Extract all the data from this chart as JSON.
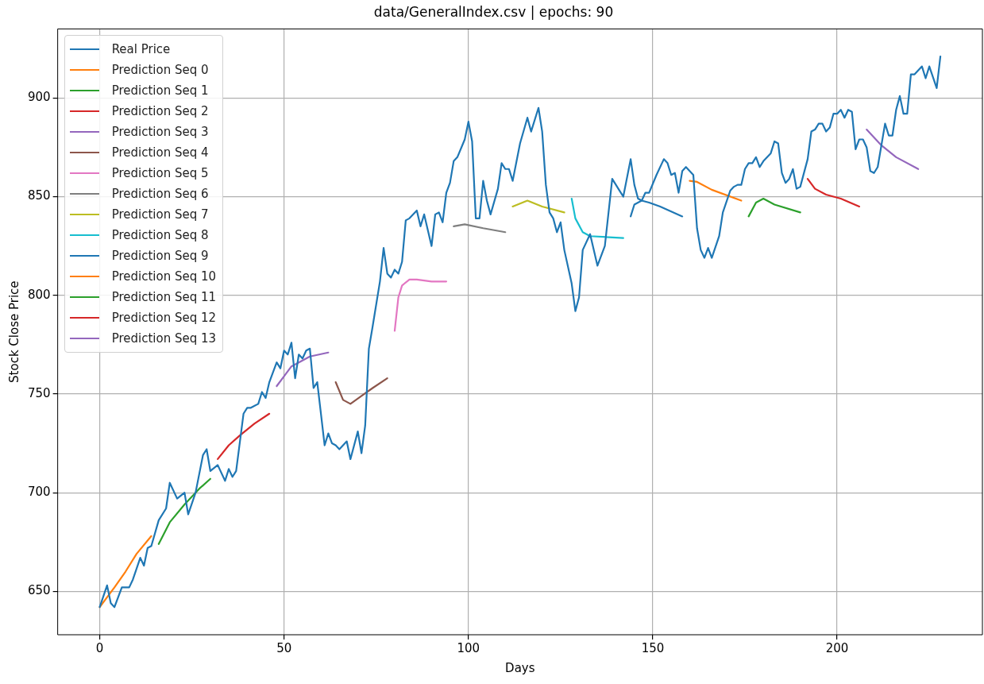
{
  "chart_data": {
    "type": "line",
    "title": "data/GeneralIndex.csv | epochs: 90",
    "xlabel": "Days",
    "ylabel": "Stock Close Price",
    "xlim": [
      -11.4,
      239.4
    ],
    "ylim": [
      628,
      935
    ],
    "xticks": [
      0,
      50,
      100,
      150,
      200
    ],
    "yticks": [
      650,
      700,
      750,
      800,
      850,
      900
    ],
    "grid": true,
    "legend": "top left",
    "marker": "none",
    "line_style": "solid",
    "series": [
      {
        "name": "Real Price",
        "color": "#1f77b4",
        "x": [
          0,
          2,
          3,
          4,
          6,
          8,
          9,
          11,
          12,
          13,
          14,
          16,
          18,
          19,
          21,
          23,
          24,
          26,
          28,
          29,
          30,
          32,
          34,
          35,
          36,
          37,
          39,
          40,
          41,
          43,
          44,
          45,
          46,
          48,
          49,
          50,
          51,
          52,
          53,
          54,
          55,
          56,
          57,
          58,
          59,
          61,
          62,
          63,
          64,
          65,
          67,
          68,
          70,
          71,
          72,
          73,
          74,
          76,
          77,
          78,
          79,
          80,
          81,
          82,
          83,
          84,
          86,
          87,
          88,
          90,
          91,
          92,
          93,
          94,
          95,
          96,
          97,
          99,
          100,
          101,
          102,
          103,
          104,
          105,
          106,
          108,
          109,
          110,
          111,
          112,
          114,
          116,
          117,
          119,
          120,
          121,
          122,
          123,
          124,
          125,
          126,
          128,
          129,
          130,
          131,
          133,
          135,
          137,
          139,
          141,
          142,
          144,
          145,
          146,
          147,
          148,
          149,
          151,
          153,
          154,
          155,
          156,
          157,
          158,
          159,
          161,
          162,
          163,
          164,
          165,
          166,
          168,
          169,
          171,
          172,
          173,
          174,
          175,
          176,
          177,
          178,
          179,
          180,
          182,
          183,
          184,
          185,
          186,
          187,
          188,
          189,
          190,
          192,
          193,
          194,
          195,
          196,
          197,
          198,
          199,
          200,
          201,
          202,
          203,
          204,
          205,
          206,
          207,
          208,
          209,
          210,
          211,
          212,
          213,
          214,
          215,
          216,
          217,
          218,
          219,
          220,
          221,
          222,
          223,
          224,
          225,
          227,
          228
        ],
        "values": [
          642,
          653,
          644,
          642,
          652,
          652,
          656,
          667,
          663,
          672,
          673,
          686,
          692,
          705,
          697,
          700,
          689,
          700,
          719,
          722,
          711,
          714,
          706,
          712,
          708,
          711,
          740,
          743,
          743,
          745,
          751,
          748,
          756,
          766,
          763,
          772,
          770,
          776,
          758,
          770,
          768,
          772,
          773,
          753,
          756,
          724,
          730,
          725,
          724,
          722,
          726,
          717,
          731,
          720,
          734,
          773,
          784,
          807,
          824,
          811,
          809,
          813,
          811,
          817,
          838,
          839,
          843,
          835,
          841,
          825,
          841,
          842,
          837,
          852,
          857,
          868,
          870,
          879,
          888,
          878,
          839,
          839,
          858,
          848,
          841,
          854,
          867,
          864,
          864,
          858,
          877,
          890,
          883,
          895,
          883,
          856,
          842,
          839,
          832,
          837,
          823,
          806,
          792,
          799,
          823,
          831,
          815,
          825,
          859,
          853,
          850,
          869,
          856,
          849,
          848,
          852,
          852,
          861,
          869,
          867,
          861,
          862,
          852,
          863,
          865,
          861,
          834,
          823,
          819,
          824,
          819,
          830,
          842,
          853,
          855,
          856,
          856,
          864,
          867,
          867,
          870,
          865,
          868,
          872,
          878,
          877,
          862,
          857,
          859,
          864,
          854,
          855,
          869,
          883,
          884,
          887,
          887,
          883,
          885,
          892,
          892,
          894,
          890,
          894,
          893,
          874,
          879,
          879,
          875,
          863,
          862,
          865,
          876,
          887,
          881,
          881,
          894,
          901,
          892,
          892,
          912,
          912,
          914,
          916,
          910,
          916,
          905,
          921
        ]
      },
      {
        "name": "Prediction Seq 0",
        "color": "#ff7f0e",
        "x": [
          0,
          4,
          7,
          10,
          14
        ],
        "values": [
          642,
          652,
          660,
          669,
          678
        ]
      },
      {
        "name": "Prediction Seq 1",
        "color": "#2ca02c",
        "x": [
          16,
          19,
          23,
          27,
          30
        ],
        "values": [
          674,
          685,
          694,
          702,
          707
        ]
      },
      {
        "name": "Prediction Seq 2",
        "color": "#d62728",
        "x": [
          32,
          35,
          38,
          42,
          46
        ],
        "values": [
          717,
          724,
          729,
          735,
          740
        ]
      },
      {
        "name": "Prediction Seq 3",
        "color": "#9467bd",
        "x": [
          48,
          50,
          52,
          57,
          62
        ],
        "values": [
          754,
          759,
          764,
          769,
          771
        ]
      },
      {
        "name": "Prediction Seq 4",
        "color": "#8c564b",
        "x": [
          64,
          66,
          68,
          71,
          74,
          78
        ],
        "values": [
          756,
          747,
          745,
          749,
          753,
          758
        ]
      },
      {
        "name": "Prediction Seq 5",
        "color": "#e377c2",
        "x": [
          80,
          81,
          82,
          84,
          86,
          90,
          94
        ],
        "values": [
          782,
          799,
          805,
          808,
          808,
          807,
          807
        ]
      },
      {
        "name": "Prediction Seq 6",
        "color": "#7f7f7f",
        "x": [
          96,
          99,
          104,
          110
        ],
        "values": [
          835,
          836,
          834,
          832
        ]
      },
      {
        "name": "Prediction Seq 7",
        "color": "#bcbd22",
        "x": [
          112,
          116,
          120,
          126
        ],
        "values": [
          845,
          848,
          845,
          842
        ]
      },
      {
        "name": "Prediction Seq 8",
        "color": "#17becf",
        "x": [
          128,
          129,
          131,
          133,
          142
        ],
        "values": [
          849,
          839,
          832,
          830,
          829
        ]
      },
      {
        "name": "Prediction Seq 9",
        "color": "#1f77b4",
        "x": [
          144,
          145,
          147,
          149,
          152,
          158
        ],
        "values": [
          840,
          846,
          848,
          847,
          845,
          840
        ]
      },
      {
        "name": "Prediction Seq 10",
        "color": "#ff7f0e",
        "x": [
          160,
          162,
          166,
          174
        ],
        "values": [
          858,
          857.5,
          853.5,
          848
        ]
      },
      {
        "name": "Prediction Seq 11",
        "color": "#2ca02c",
        "x": [
          176,
          178,
          180,
          183,
          190
        ],
        "values": [
          840,
          847,
          849,
          846,
          842
        ]
      },
      {
        "name": "Prediction Seq 12",
        "color": "#d62728",
        "x": [
          192,
          194,
          197,
          201,
          206
        ],
        "values": [
          859,
          854,
          851,
          849,
          845
        ]
      },
      {
        "name": "Prediction Seq 13",
        "color": "#9467bd",
        "x": [
          208,
          212,
          216,
          222
        ],
        "values": [
          884,
          876,
          870,
          864
        ]
      }
    ]
  }
}
